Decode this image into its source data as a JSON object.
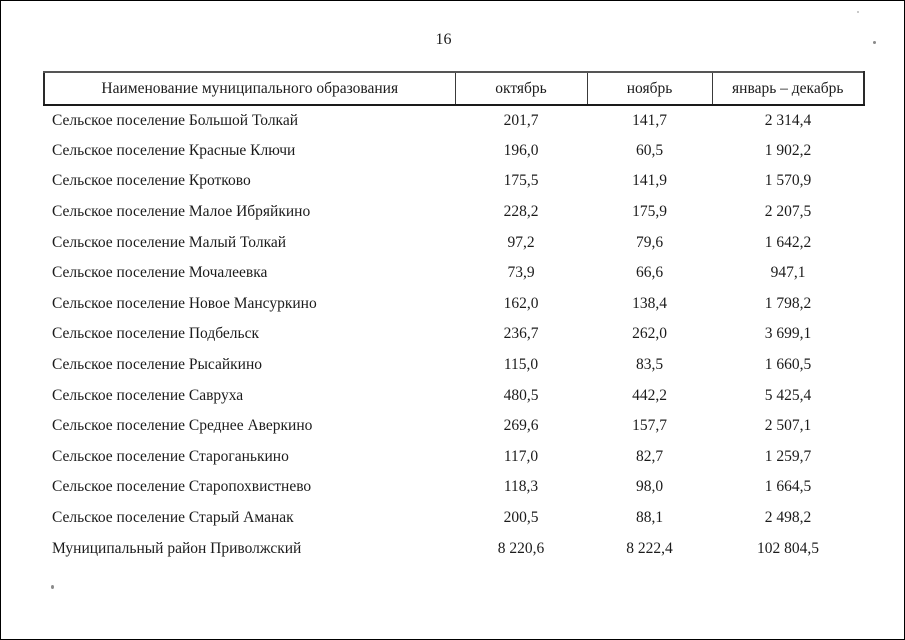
{
  "page": {
    "number": "16"
  },
  "table": {
    "headers": [
      "Наименование муниципального образования",
      "октябрь",
      "ноябрь",
      "январь – декабрь"
    ],
    "rows": [
      {
        "name": "Сельское поселение Большой Толкай",
        "values": [
          "201,7",
          "141,7",
          "2 314,4"
        ]
      },
      {
        "name": "Сельское поселение Красные Ключи",
        "values": [
          "196,0",
          "60,5",
          "1 902,2"
        ]
      },
      {
        "name": "Сельское поселение Кротково",
        "values": [
          "175,5",
          "141,9",
          "1 570,9"
        ]
      },
      {
        "name": "Сельское поселение Малое Ибряйкино",
        "values": [
          "228,2",
          "175,9",
          "2 207,5"
        ]
      },
      {
        "name": "Сельское поселение Малый Толкай",
        "values": [
          "97,2",
          "79,6",
          "1 642,2"
        ]
      },
      {
        "name": "Сельское поселение Мочалеевка",
        "values": [
          "73,9",
          "66,6",
          "947,1"
        ]
      },
      {
        "name": "Сельское поселение Новое Мансуркино",
        "values": [
          "162,0",
          "138,4",
          "1 798,2"
        ]
      },
      {
        "name": "Сельское поселение Подбельск",
        "values": [
          "236,7",
          "262,0",
          "3 699,1"
        ]
      },
      {
        "name": "Сельское поселение Рысайкино",
        "values": [
          "115,0",
          "83,5",
          "1 660,5"
        ]
      },
      {
        "name": "Сельское поселение Савруха",
        "values": [
          "480,5",
          "442,2",
          "5 425,4"
        ]
      },
      {
        "name": "Сельское поселение Среднее Аверкино",
        "values": [
          "269,6",
          "157,7",
          "2 507,1"
        ]
      },
      {
        "name": "Сельское поселение Староганькино",
        "values": [
          "117,0",
          "82,7",
          "1 259,7"
        ]
      },
      {
        "name": "Сельское поселение Старопохвистнево",
        "values": [
          "118,3",
          "98,0",
          "1 664,5"
        ]
      },
      {
        "name": "Сельское поселение Старый Аманак",
        "values": [
          "200,5",
          "88,1",
          "2 498,2"
        ]
      },
      {
        "name": "Муниципальный район Приволжский",
        "values": [
          "8 220,6",
          "8 222,4",
          "102 804,5"
        ]
      }
    ]
  },
  "colors": {
    "text": "#1b1b1b",
    "border": "#2a2a2a",
    "background": "#ffffff"
  }
}
